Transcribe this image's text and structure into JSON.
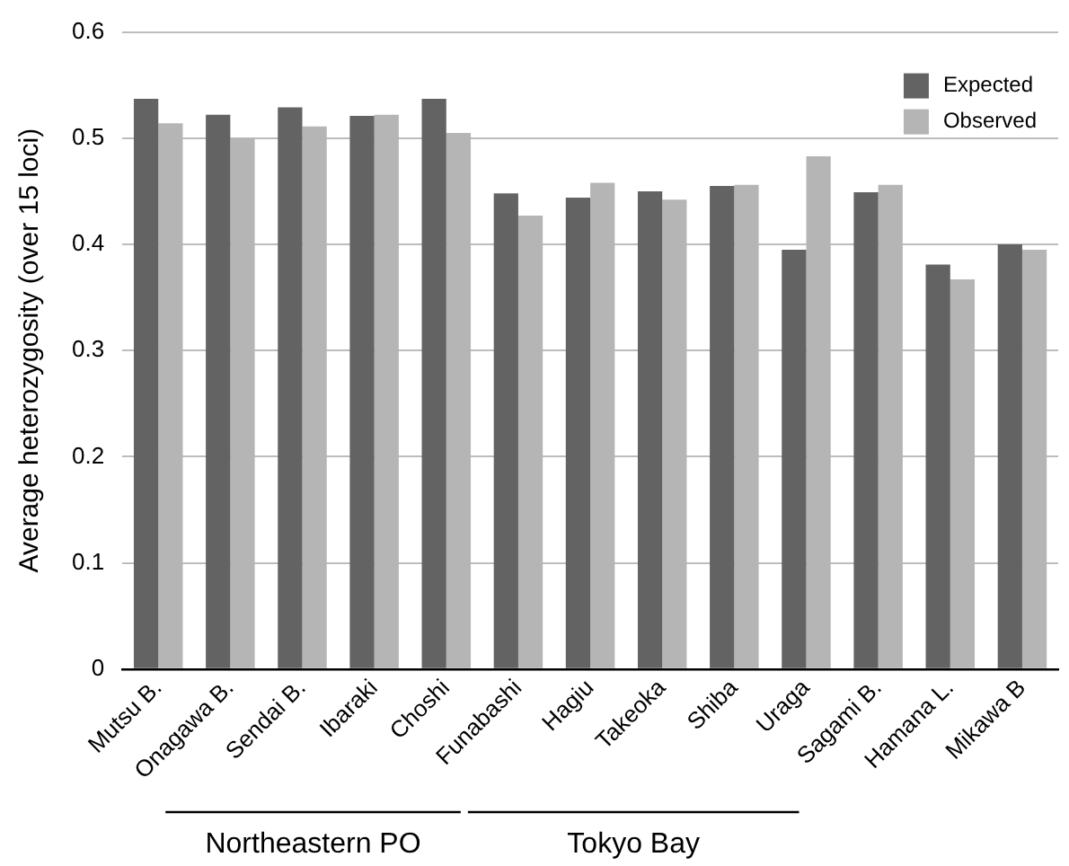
{
  "chart_data": {
    "type": "bar",
    "ylabel": "Average heterozygosity (over 15 loci)",
    "categories": [
      "Mutsu B.",
      "Onagawa B.",
      "Sendai B.",
      "Ibaraki",
      "Choshi",
      "Funabashi",
      "Hagiu",
      "Takeoka",
      "Shiba",
      "Uraga",
      "Sagami B.",
      "Hamana L.",
      "Mikawa B"
    ],
    "series": [
      {
        "name": "Expected",
        "color": "#636363",
        "values": [
          0.537,
          0.522,
          0.529,
          0.521,
          0.537,
          0.448,
          0.444,
          0.45,
          0.455,
          0.395,
          0.449,
          0.381,
          0.4
        ]
      },
      {
        "name": "Observed",
        "color": "#b5b5b5",
        "values": [
          0.514,
          0.5,
          0.511,
          0.522,
          0.505,
          0.427,
          0.458,
          0.442,
          0.456,
          0.483,
          0.456,
          0.367,
          0.395
        ]
      }
    ],
    "ylim": [
      0,
      0.6
    ],
    "yticks": [
      0,
      0.1,
      0.2,
      0.3,
      0.4,
      0.5,
      0.6
    ],
    "grid": "y",
    "legend": "top right",
    "annotations": [
      "Northeastern PO",
      "Tokyo Bay"
    ]
  }
}
